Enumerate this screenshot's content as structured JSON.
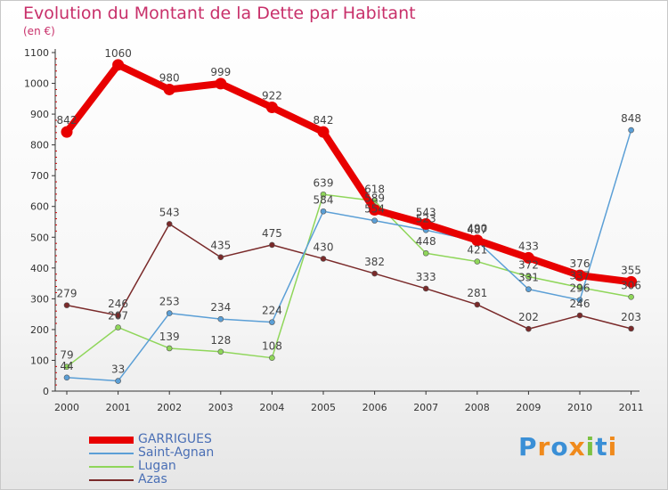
{
  "chart_data": {
    "type": "line",
    "title": "Evolution du Montant de la Dette par Habitant",
    "subtitle": "(en €)",
    "xlabel": "",
    "ylabel": "",
    "ylim": [
      0,
      1100
    ],
    "yticks": [
      0,
      100,
      200,
      300,
      400,
      500,
      600,
      700,
      800,
      900,
      1000,
      1100
    ],
    "x": [
      "2000",
      "2001",
      "2002",
      "2003",
      "2004",
      "2005",
      "2006",
      "2007",
      "2008",
      "2009",
      "2010",
      "2011"
    ],
    "grid": false,
    "legend_position": "bottom-left",
    "series": [
      {
        "name": "GARRIGUES",
        "color": "#e80000",
        "values": [
          842,
          1060,
          980,
          999,
          922,
          842,
          589,
          543,
          490,
          433,
          376,
          355
        ]
      },
      {
        "name": "Saint-Agnan",
        "color": "#5b9fd6",
        "values": [
          44,
          33,
          253,
          234,
          224,
          584,
          554,
          523,
          487,
          331,
          296,
          848
        ]
      },
      {
        "name": "Lugan",
        "color": "#8fd65a",
        "values": [
          79,
          207,
          139,
          128,
          108,
          639,
          618,
          448,
          421,
          372,
          337,
          306
        ]
      },
      {
        "name": "Azas",
        "color": "#7a2a2a",
        "values": [
          279,
          246,
          543,
          435,
          475,
          430,
          382,
          333,
          281,
          202,
          246,
          203
        ]
      }
    ]
  },
  "logo": {
    "text": [
      "P",
      "r",
      "o",
      "x",
      "i",
      "t",
      "i"
    ]
  }
}
